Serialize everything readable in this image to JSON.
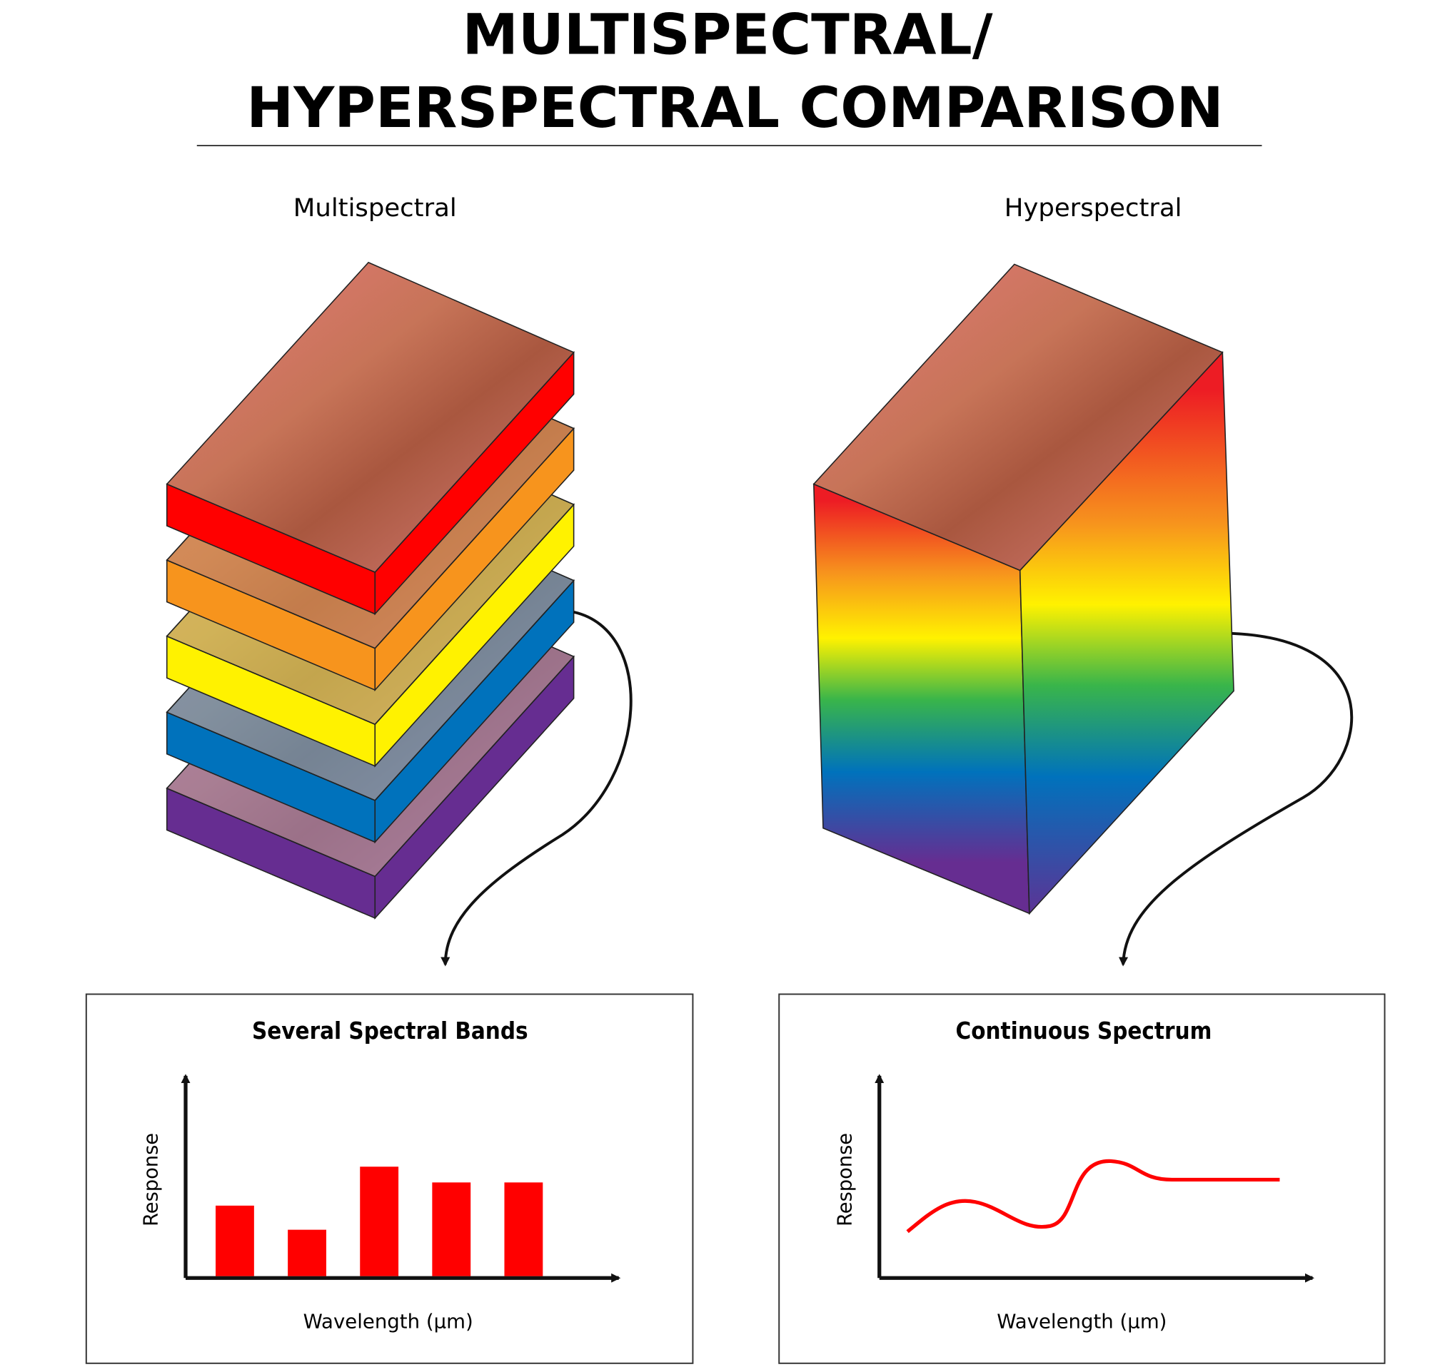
{
  "header": {
    "title_lines": [
      "MULTISPECTRAL/",
      "HYPERSPECTRAL COMPARISON"
    ]
  },
  "columns": [
    {
      "label": "Multispectral",
      "panel": {
        "title": "Several Spectral Bands",
        "y_label": "Response",
        "x_label": "Wavelength (µm)"
      }
    },
    {
      "label": "Hyperspectral",
      "panel": {
        "title": "Continuous Spectrum",
        "y_label": "Response",
        "x_label": "Wavelength (µm)"
      }
    }
  ]
}
